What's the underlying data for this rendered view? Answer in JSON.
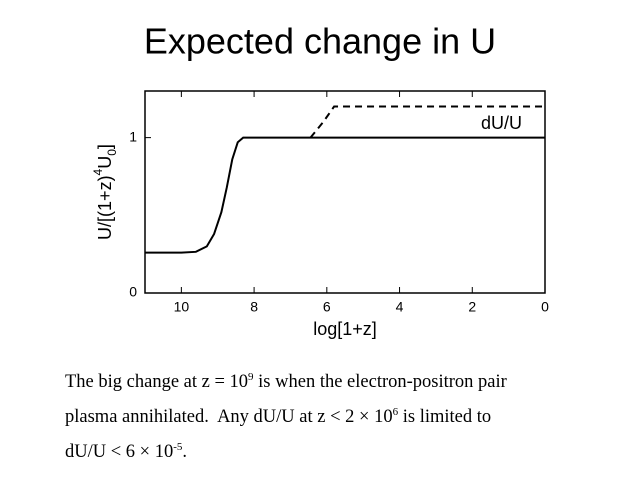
{
  "chart_data": {
    "type": "line",
    "title": "Expected change in U",
    "xlabel": "log[1+z]",
    "ylabel": [
      {
        "text": "U/[(1+z)"
      },
      {
        "sup": "4"
      },
      {
        "text": "U"
      },
      {
        "sub": "0"
      },
      {
        "text": "]"
      }
    ],
    "xlim": [
      11,
      0
    ],
    "xticks": [
      10,
      8,
      6,
      4,
      2,
      0
    ],
    "ylim": [
      0,
      1.3
    ],
    "yticks": [
      0,
      1
    ],
    "legend": "upper right",
    "series": [
      {
        "color": "#000000",
        "dash": false,
        "x": [
          11,
          10,
          9.6,
          9.3,
          9.1,
          8.9,
          8.75,
          8.6,
          8.45,
          8.3,
          8.1,
          6,
          4,
          2,
          0
        ],
        "values": [
          0.26,
          0.26,
          0.265,
          0.3,
          0.38,
          0.52,
          0.68,
          0.86,
          0.97,
          1,
          1,
          1,
          1,
          1,
          1
        ]
      },
      {
        "name": "dU/U",
        "color": "#000000",
        "dash": true,
        "x": [
          6.45,
          6.1,
          5.8,
          4,
          2,
          0
        ],
        "values": [
          1,
          1.1,
          1.2,
          1.2,
          1.2,
          1.2
        ]
      }
    ]
  },
  "caption": [
    [
      {
        "text": "The big change at z = 10"
      },
      {
        "sup": "9"
      },
      {
        "text": " is when the electron-positron pair"
      }
    ],
    [
      {
        "text": "plasma annihilated.  Any dU/U at z < 2 × 10"
      },
      {
        "sup": "6"
      },
      {
        "text": " is limited to"
      }
    ],
    [
      {
        "text": "dU/U < 6 × 10"
      },
      {
        "sup": "-5"
      },
      {
        "text": "."
      }
    ]
  ]
}
